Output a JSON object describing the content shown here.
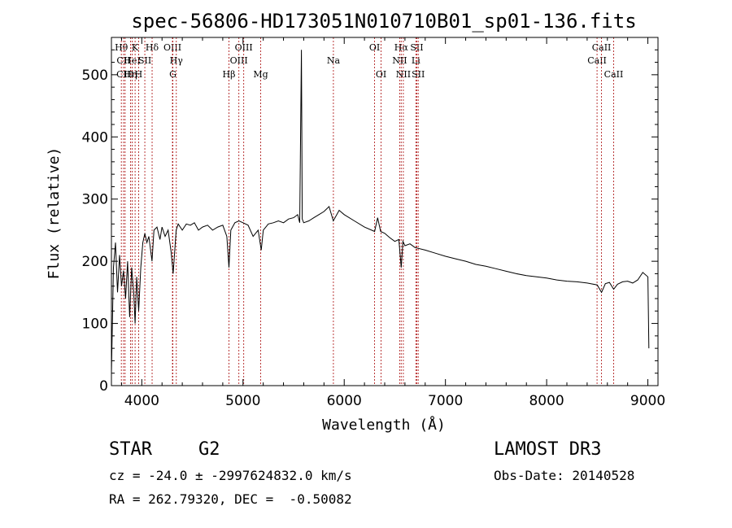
{
  "chart_data": {
    "type": "line",
    "title": "spec-56806-HD173051N010710B01_sp01-136.fits",
    "xlabel": "Wavelength (Å)",
    "ylabel": "Flux (relative)",
    "xlim": [
      3700,
      9100
    ],
    "ylim": [
      0,
      560
    ],
    "x_ticks": [
      4000,
      5000,
      6000,
      7000,
      8000,
      9000
    ],
    "y_ticks": [
      0,
      100,
      200,
      300,
      400,
      500
    ],
    "line_color": "#000000",
    "marker_color": "#b22222",
    "series": [
      {
        "name": "flux",
        "x": [
          3700,
          3720,
          3740,
          3760,
          3780,
          3800,
          3820,
          3840,
          3860,
          3880,
          3900,
          3920,
          3934,
          3950,
          3969,
          3990,
          4010,
          4030,
          4050,
          4070,
          4101,
          4120,
          4150,
          4180,
          4200,
          4230,
          4260,
          4290,
          4310,
          4340,
          4360,
          4380,
          4400,
          4440,
          4480,
          4520,
          4560,
          4600,
          4650,
          4700,
          4750,
          4800,
          4840,
          4861,
          4880,
          4920,
          4960,
          5000,
          5050,
          5100,
          5150,
          5180,
          5200,
          5250,
          5300,
          5350,
          5400,
          5450,
          5500,
          5540,
          5560,
          5577,
          5585,
          5600,
          5650,
          5700,
          5750,
          5800,
          5850,
          5892,
          5950,
          6000,
          6100,
          6200,
          6300,
          6330,
          6360,
          6400,
          6450,
          6500,
          6540,
          6563,
          6580,
          6600,
          6650,
          6700,
          6800,
          6900,
          7000,
          7100,
          7200,
          7300,
          7400,
          7500,
          7600,
          7700,
          7800,
          7900,
          8000,
          8100,
          8200,
          8300,
          8400,
          8500,
          8542,
          8580,
          8620,
          8662,
          8700,
          8750,
          8800,
          8850,
          8900,
          8950,
          9000,
          9010
        ],
        "y": [
          20,
          190,
          230,
          150,
          210,
          160,
          185,
          140,
          200,
          110,
          190,
          150,
          100,
          175,
          120,
          190,
          230,
          245,
          230,
          240,
          200,
          250,
          255,
          235,
          255,
          240,
          250,
          215,
          180,
          250,
          260,
          255,
          250,
          260,
          258,
          262,
          250,
          255,
          258,
          250,
          255,
          258,
          240,
          190,
          250,
          262,
          265,
          262,
          258,
          240,
          250,
          218,
          250,
          260,
          262,
          265,
          262,
          268,
          270,
          275,
          262,
          540,
          268,
          262,
          265,
          270,
          275,
          280,
          288,
          265,
          282,
          275,
          265,
          255,
          248,
          270,
          248,
          245,
          238,
          232,
          235,
          190,
          232,
          225,
          228,
          222,
          218,
          213,
          208,
          204,
          200,
          195,
          192,
          188,
          184,
          180,
          177,
          175,
          173,
          170,
          168,
          167,
          165,
          162,
          150,
          164,
          166,
          155,
          163,
          167,
          168,
          165,
          170,
          182,
          175,
          60
        ]
      }
    ],
    "line_markers": [
      {
        "label": "Hθ",
        "x": 3798,
        "row": 1
      },
      {
        "label": "CII",
        "x": 3820,
        "row": 2
      },
      {
        "label": "CIII",
        "x": 3835,
        "row": 3
      },
      {
        "label": "Hη",
        "x": 3889,
        "row": 3
      },
      {
        "label": "HeI",
        "x": 3905,
        "row": 2
      },
      {
        "label": "K",
        "x": 3934,
        "row": 1
      },
      {
        "label": "H",
        "x": 3969,
        "row": 3
      },
      {
        "label": "SII",
        "x": 4030,
        "row": 2
      },
      {
        "label": "Hδ",
        "x": 4102,
        "row": 1
      },
      {
        "label": "OIII",
        "x": 4303,
        "row": 1
      },
      {
        "label": "Hγ",
        "x": 4341,
        "row": 2
      },
      {
        "label": "G",
        "x": 4307,
        "row": 3
      },
      {
        "label": "Hβ",
        "x": 4861,
        "row": 3
      },
      {
        "label": "OIII",
        "x": 4959,
        "row": 2
      },
      {
        "label": "OIII",
        "x": 5007,
        "row": 1
      },
      {
        "label": "Mg",
        "x": 5175,
        "row": 3
      },
      {
        "label": "Na",
        "x": 5893,
        "row": 2
      },
      {
        "label": "OI",
        "x": 6300,
        "row": 1
      },
      {
        "label": "OI",
        "x": 6364,
        "row": 3
      },
      {
        "label": "Hα",
        "x": 6563,
        "row": 1
      },
      {
        "label": "NII",
        "x": 6548,
        "row": 2
      },
      {
        "label": "NII",
        "x": 6584,
        "row": 3
      },
      {
        "label": "SII",
        "x": 6717,
        "row": 1
      },
      {
        "label": "Li",
        "x": 6708,
        "row": 2
      },
      {
        "label": "SII",
        "x": 6731,
        "row": 3
      },
      {
        "label": "CaII",
        "x": 8498,
        "row": 2
      },
      {
        "label": "CaII",
        "x": 8542,
        "row": 1
      },
      {
        "label": "CaII",
        "x": 8662,
        "row": 3
      }
    ]
  },
  "info": {
    "object_type": "STAR",
    "subclass": "G2",
    "survey": "LAMOST DR3",
    "redshift": "cz = -24.0 ± -2997624832.0 km/s",
    "obs_date": "Obs-Date: 20140528",
    "coords": "RA = 262.79320, DEC =  -0.50082"
  }
}
